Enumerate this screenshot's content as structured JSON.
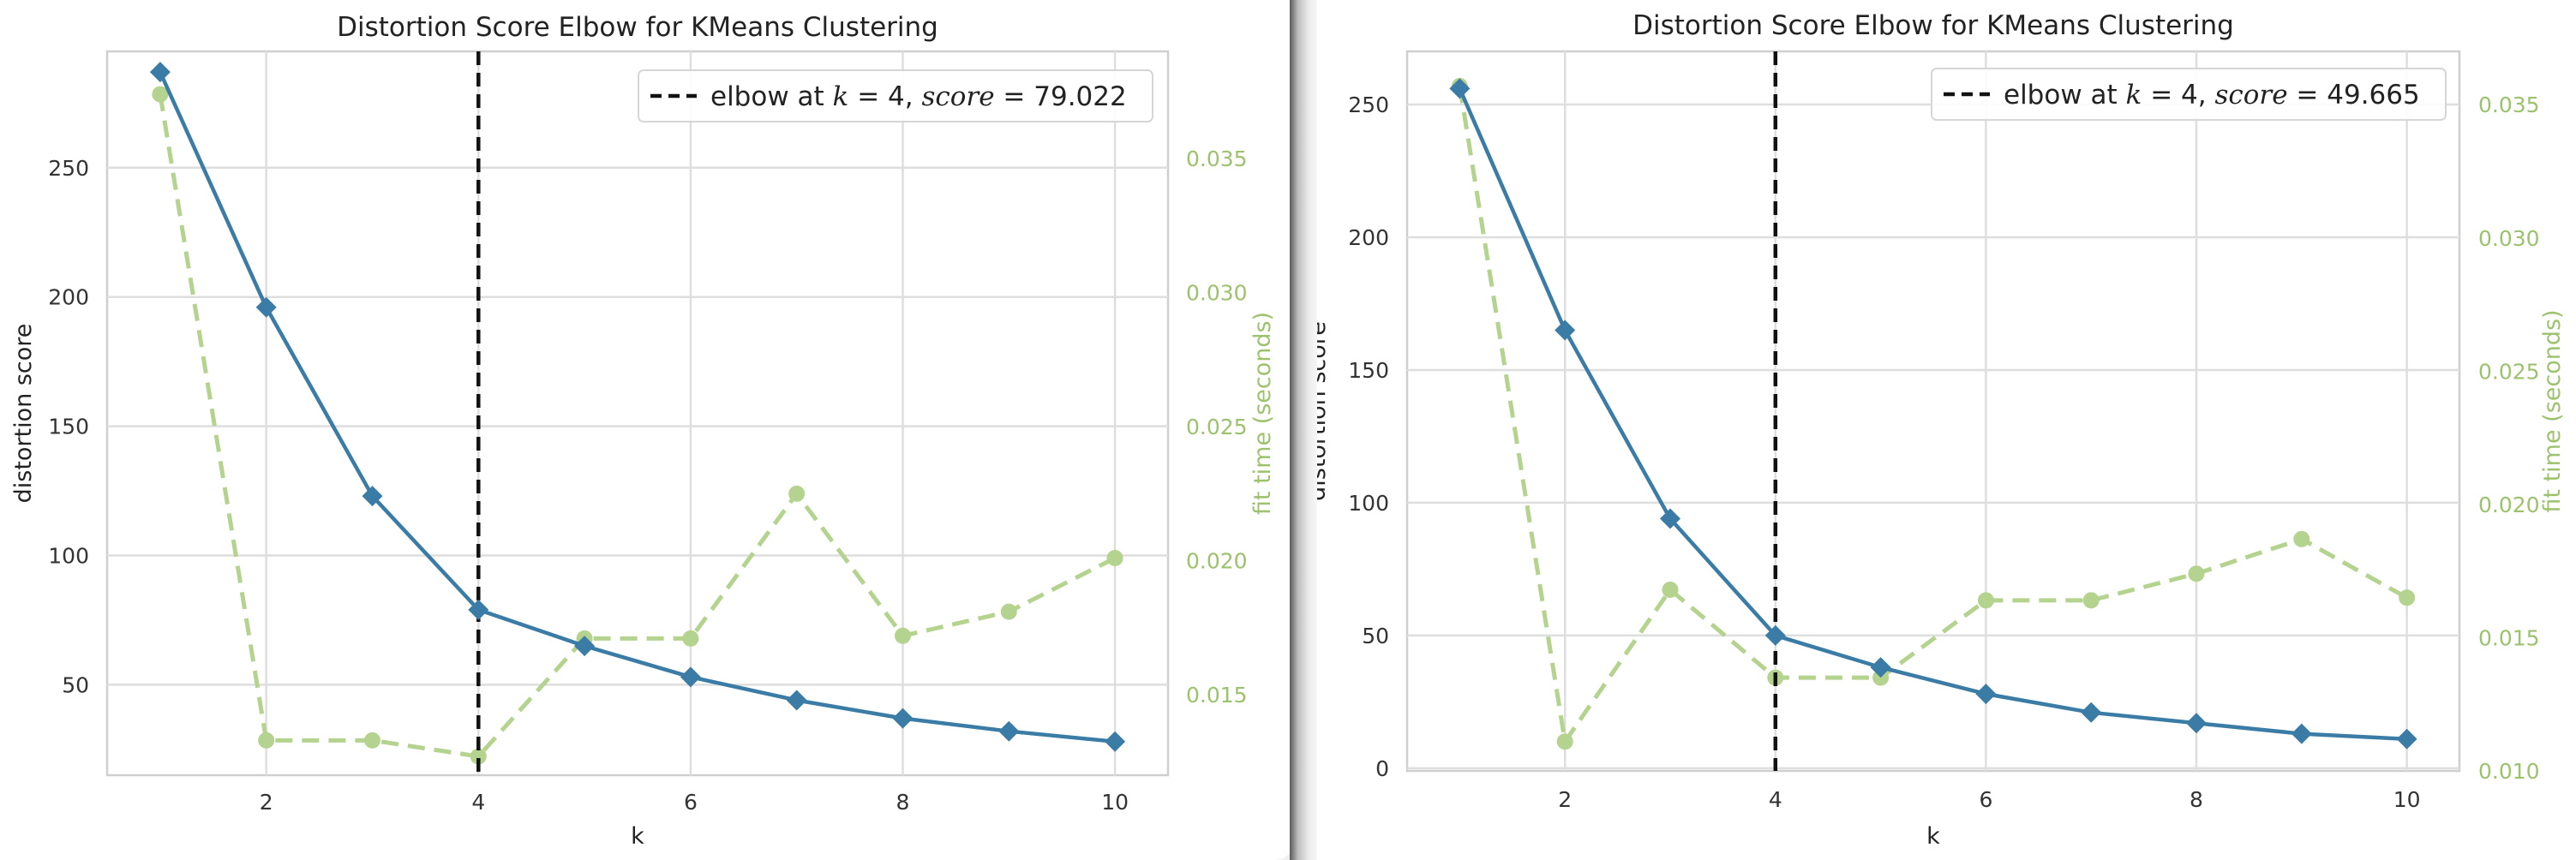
{
  "chart_data": [
    {
      "type": "line",
      "title": "Distortion Score Elbow for KMeans Clustering",
      "xlabel": "k",
      "ylabel": "distortion score",
      "y2label": "fit time (seconds)",
      "xlim": [
        0.5,
        10.5
      ],
      "ylim": [
        15,
        295
      ],
      "y2lim": [
        0.012,
        0.039
      ],
      "x_ticks": [
        2,
        4,
        6,
        8,
        10
      ],
      "y_ticks": [
        50,
        100,
        150,
        200,
        250
      ],
      "y2_ticks": [
        0.015,
        0.02,
        0.025,
        0.03,
        0.035
      ],
      "y2_tick_labels": [
        "0.015",
        "0.020",
        "0.025",
        "0.030",
        "0.035"
      ],
      "x": [
        1,
        2,
        3,
        4,
        5,
        6,
        7,
        8,
        9,
        10
      ],
      "series": [
        {
          "name": "distortion score",
          "axis": "left",
          "color": "#3a7ca5",
          "values": [
            287,
            196,
            123,
            79,
            65,
            53,
            44,
            37,
            32,
            28
          ]
        },
        {
          "name": "fit time",
          "axis": "right",
          "color": "#b4d38e",
          "values": [
            0.0374,
            0.0133,
            0.0133,
            0.0127,
            0.0171,
            0.0171,
            0.0225,
            0.0172,
            0.0181,
            0.0201
          ]
        }
      ],
      "elbow_k": 4,
      "legend": {
        "label": "elbow at ",
        "k": "k",
        "eq1": " = 4, ",
        "score": "score",
        "eq2": " = 79.022"
      },
      "legend_position": "top-right"
    },
    {
      "type": "line",
      "title": "Distortion Score Elbow for KMeans Clustering",
      "xlabel": "k",
      "ylabel": "distortion score",
      "y2label": "fit time (seconds)",
      "xlim": [
        0.5,
        10.5
      ],
      "ylim": [
        -1,
        270
      ],
      "y2lim": [
        0.01,
        0.037
      ],
      "x_ticks": [
        2,
        4,
        6,
        8,
        10
      ],
      "y_ticks": [
        0,
        50,
        100,
        150,
        200,
        250
      ],
      "y2_ticks": [
        0.01,
        0.015,
        0.02,
        0.025,
        0.03,
        0.035
      ],
      "y2_tick_labels": [
        "0.010",
        "0.015",
        "0.020",
        "0.025",
        "0.030",
        "0.035"
      ],
      "x": [
        1,
        2,
        3,
        4,
        5,
        6,
        7,
        8,
        9,
        10
      ],
      "series": [
        {
          "name": "distortion score",
          "axis": "left",
          "color": "#3a7ca5",
          "values": [
            256,
            165,
            94,
            50,
            38,
            28,
            21,
            17,
            13,
            11
          ]
        },
        {
          "name": "fit time",
          "axis": "right",
          "color": "#b4d38e",
          "values": [
            0.0357,
            0.0111,
            0.0168,
            0.0135,
            0.0135,
            0.0164,
            0.0164,
            0.0174,
            0.0187,
            0.0165
          ]
        }
      ],
      "elbow_k": 4,
      "legend": {
        "label": "elbow at ",
        "k": "k",
        "eq1": " = 4, ",
        "score": "score",
        "eq2": " = 49.665"
      },
      "legend_position": "top-right"
    }
  ]
}
